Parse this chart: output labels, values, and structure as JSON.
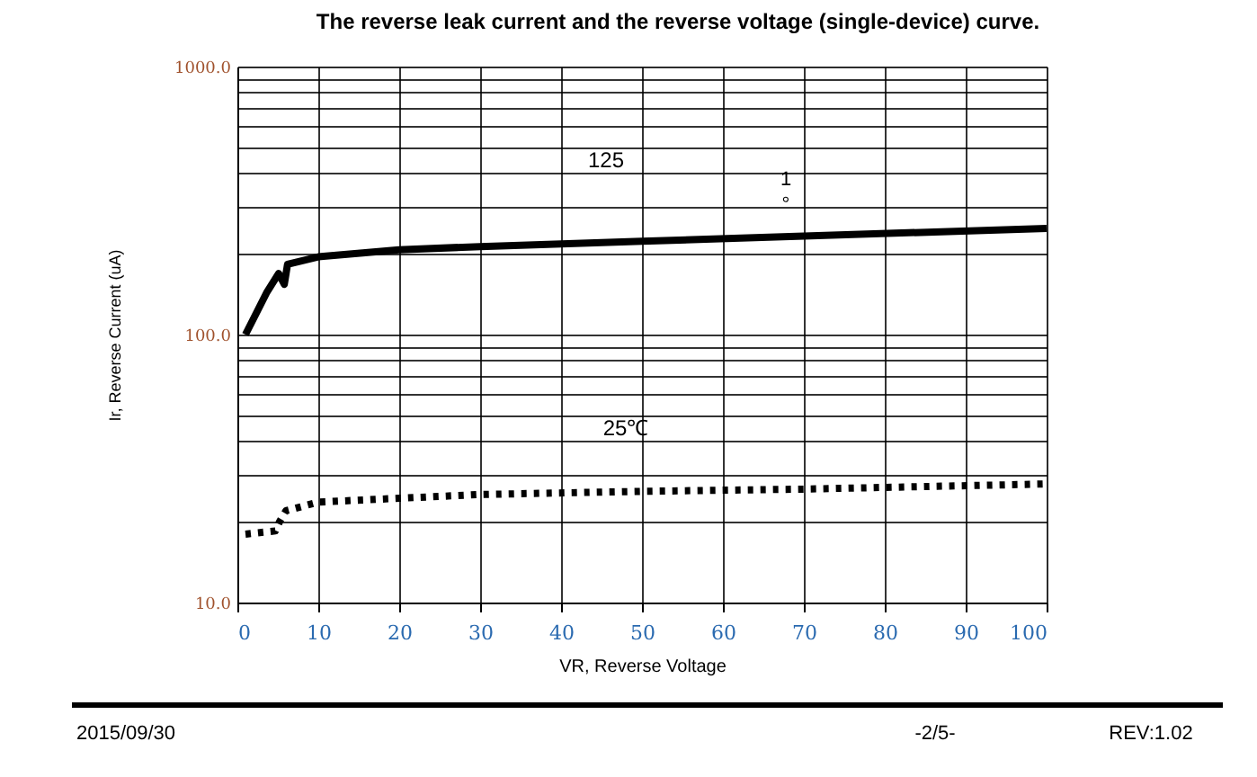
{
  "chart_data": {
    "type": "line",
    "title": "The reverse leak current and the reverse voltage (single-device) curve.",
    "xlabel": "VR, Reverse Voltage",
    "ylabel": "Ir, Reverse Current (uA)",
    "series": [
      {
        "color": "#000000",
        "line_style": "solid",
        "x": [
          1,
          3.6,
          5.1,
          5.8,
          6.2,
          10,
          20,
          30,
          50,
          70,
          100
        ],
        "values": [
          100,
          143,
          169,
          154,
          183,
          195,
          207,
          213,
          223,
          233,
          249
        ]
      },
      {
        "color": "#000000",
        "line_style": "dotted",
        "x": [
          1,
          4.7,
          5.2,
          6,
          10,
          20,
          30,
          50,
          70,
          100
        ],
        "values": [
          18.0,
          18.5,
          20,
          22.0,
          23.7,
          24.5,
          25.3,
          26,
          26.5,
          27.7
        ]
      }
    ],
    "xlim": [
      0,
      100
    ],
    "xticks": [
      0,
      10,
      20,
      30,
      40,
      50,
      60,
      70,
      80,
      90,
      100
    ],
    "ylim": [
      10,
      1000
    ],
    "log": true,
    "yticks": [
      {
        "value": 10,
        "label": "10.0"
      },
      {
        "value": 20,
        "label": null
      },
      {
        "value": 30,
        "label": null
      },
      {
        "value": 40,
        "label": null
      },
      {
        "value": 50,
        "label": null
      },
      {
        "value": 60,
        "label": null
      },
      {
        "value": 70,
        "label": null
      },
      {
        "value": 80,
        "label": null
      },
      {
        "value": 90,
        "label": null
      },
      {
        "value": 100,
        "label": "100.0"
      },
      {
        "value": 200,
        "label": null
      },
      {
        "value": 300,
        "label": null
      },
      {
        "value": 400,
        "label": null
      },
      {
        "value": 500,
        "label": null
      },
      {
        "value": 600,
        "label": null
      },
      {
        "value": 700,
        "label": null
      },
      {
        "value": 800,
        "label": null
      },
      {
        "value": 900,
        "label": null
      },
      {
        "value": 1000,
        "label": "1000.0"
      }
    ],
    "grid": true,
    "annotations": [
      "125",
      "1",
      "°",
      "25℃",
      "2015/09/30",
      "-2/5-",
      "REV:1.02"
    ]
  }
}
